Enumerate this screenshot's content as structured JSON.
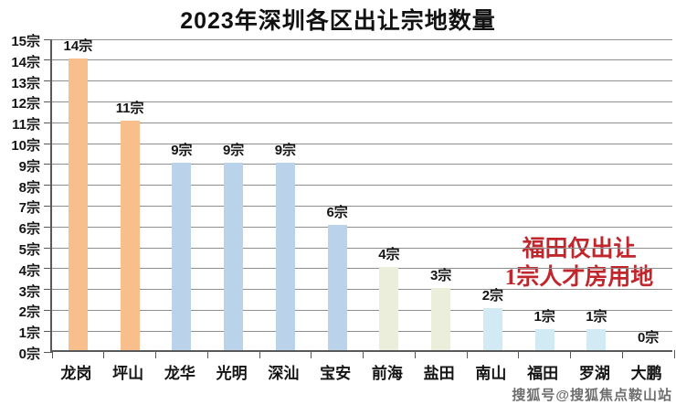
{
  "chart_data": {
    "type": "bar",
    "title": "2023年深圳各区出让宗地数量",
    "categories": [
      "龙岗",
      "坪山",
      "龙华",
      "光明",
      "深汕",
      "宝安",
      "前海",
      "盐田",
      "南山",
      "福田",
      "罗湖",
      "大鹏"
    ],
    "values": [
      14,
      11,
      9,
      9,
      9,
      6,
      4,
      3,
      2,
      1,
      1,
      0
    ],
    "unit_suffix": "宗",
    "xlabel": "",
    "ylabel": "",
    "ylim": [
      0,
      15
    ],
    "ytick_step": 1,
    "grid": true,
    "legend": false,
    "bar_colors": [
      "#F8BE8C",
      "#F8BE8C",
      "#BAD3EB",
      "#BAD3EB",
      "#BAD3EB",
      "#BAD3EB",
      "#EAEEDA",
      "#EAEEDA",
      "#D2EAF3",
      "#D2EAF3",
      "#D2EAF3",
      "#D2EAF3"
    ],
    "colors": {
      "orange": "#F8BE8C",
      "steel_blue": "#BAD3EB",
      "pale_green": "#EAEEDA",
      "pale_cyan": "#D2EAF3",
      "gridline": "#8F8F8F",
      "axis": "#595959",
      "label_text": "#141414"
    }
  },
  "annotation": {
    "line1": "福田仅出让",
    "line2": "1宗人才房用地",
    "color": "#C0262C"
  },
  "watermark": "搜狐号@搜狐焦点鞍山站"
}
